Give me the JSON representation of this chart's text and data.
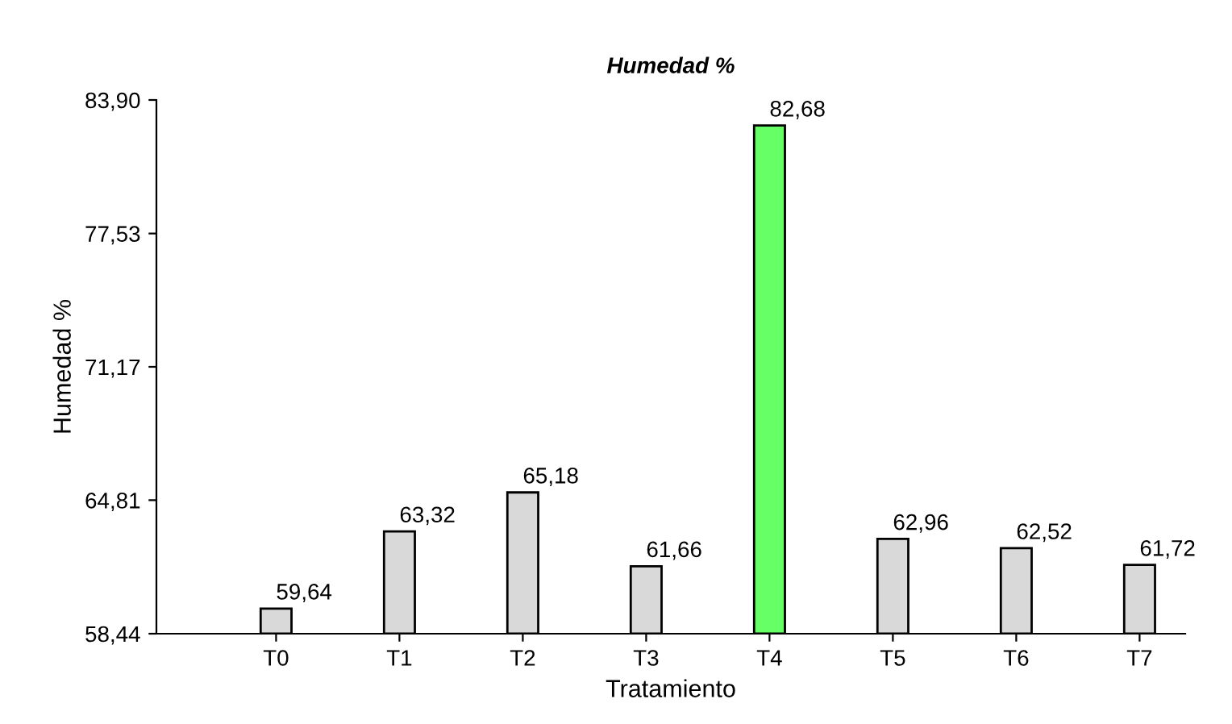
{
  "chart_data": {
    "type": "bar",
    "title": "Humedad %",
    "xlabel": "Tratamiento",
    "ylabel": "Humedad %",
    "categories": [
      "T0",
      "T1",
      "T2",
      "T3",
      "T4",
      "T5",
      "T6",
      "T7"
    ],
    "values": [
      59.64,
      63.32,
      65.18,
      61.66,
      82.68,
      62.96,
      62.52,
      61.72
    ],
    "colors": [
      "#d9d9d9",
      "#d9d9d9",
      "#d9d9d9",
      "#d9d9d9",
      "#66ff66",
      "#d9d9d9",
      "#d9d9d9",
      "#d9d9d9"
    ],
    "value_labels": [
      "59,64",
      "63,32",
      "65,18",
      "61,66",
      "82,68",
      "62,96",
      "62,52",
      "61,72"
    ],
    "ylim": [
      58.44,
      83.9
    ],
    "yticks": [
      {
        "value": 58.44,
        "label": "58,44"
      },
      {
        "value": 64.81,
        "label": "64,81"
      },
      {
        "value": 71.17,
        "label": "71,17"
      },
      {
        "value": 77.53,
        "label": "77,53"
      },
      {
        "value": 83.9,
        "label": "83,90"
      }
    ],
    "grid": false
  }
}
